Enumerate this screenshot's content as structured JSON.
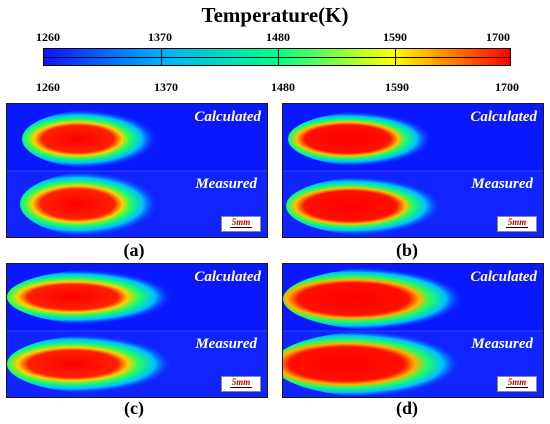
{
  "colorbar": {
    "title": "Temperature(K)",
    "ticks": [
      "1260",
      "1370",
      "1480",
      "1590",
      "1700"
    ],
    "min": 1260,
    "max": 1700,
    "colors": [
      "#1010ff",
      "#00b0ff",
      "#00ff88",
      "#ffff00",
      "#ff0000"
    ]
  },
  "panels": [
    {
      "caption": "(a)",
      "calculated_label": "Calculated",
      "measured_label": "Measured",
      "scale_label": "5mm"
    },
    {
      "caption": "(b)",
      "calculated_label": "Calculated",
      "measured_label": "Measured",
      "scale_label": "5mm"
    },
    {
      "caption": "(c)",
      "calculated_label": "Calculated",
      "measured_label": "Measured",
      "scale_label": "5mm"
    },
    {
      "caption": "(d)",
      "calculated_label": "Calculated",
      "measured_label": "Measured",
      "scale_label": "5mm"
    }
  ]
}
